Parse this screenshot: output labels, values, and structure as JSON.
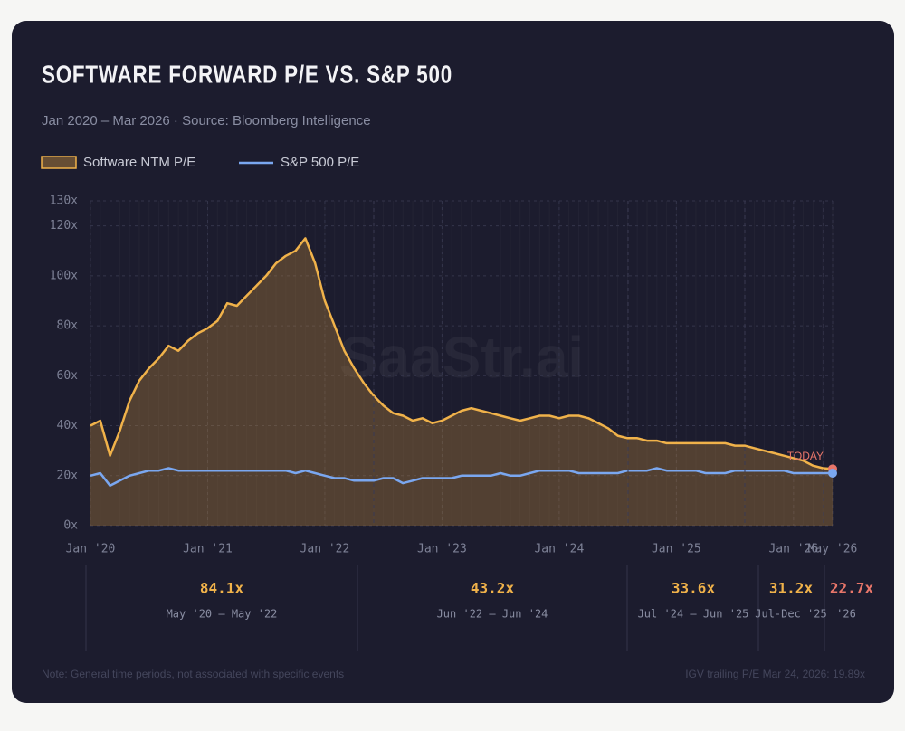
{
  "chart_data": {
    "type": "area-line",
    "title": "SOFTWARE FORWARD P/E VS. S&P 500",
    "subtitle": "Jan 2020 – Mar 2026  ·  Source: Bloomberg Intelligence",
    "watermark": "SaaStr.ai",
    "annotation": "TODAY",
    "x": [
      "2020-01",
      "2020-02",
      "2020-03",
      "2020-04",
      "2020-05",
      "2020-06",
      "2020-07",
      "2020-08",
      "2020-09",
      "2020-10",
      "2020-11",
      "2020-12",
      "2021-01",
      "2021-02",
      "2021-03",
      "2021-04",
      "2021-05",
      "2021-06",
      "2021-07",
      "2021-08",
      "2021-09",
      "2021-10",
      "2021-11",
      "2021-12",
      "2022-01",
      "2022-02",
      "2022-03",
      "2022-04",
      "2022-05",
      "2022-06",
      "2022-07",
      "2022-08",
      "2022-09",
      "2022-10",
      "2022-11",
      "2022-12",
      "2023-01",
      "2023-02",
      "2023-03",
      "2023-04",
      "2023-05",
      "2023-06",
      "2023-07",
      "2023-08",
      "2023-09",
      "2023-10",
      "2023-11",
      "2023-12",
      "2024-01",
      "2024-02",
      "2024-03",
      "2024-04",
      "2024-05",
      "2024-06",
      "2024-07",
      "2024-08",
      "2024-09",
      "2024-10",
      "2024-11",
      "2024-12",
      "2025-01",
      "2025-02",
      "2025-03",
      "2025-04",
      "2025-05",
      "2025-06",
      "2025-07",
      "2025-08",
      "2025-09",
      "2025-10",
      "2025-11",
      "2025-12",
      "2026-01",
      "2026-02",
      "2026-03",
      "2026-04",
      "2026-05"
    ],
    "series": [
      {
        "name": "Software NTM P/E",
        "color": "#f0b24a",
        "fill": "rgba(196,140,60,0.32)",
        "values": [
          40,
          42,
          28,
          38,
          50,
          58,
          63,
          67,
          72,
          70,
          74,
          77,
          79,
          82,
          89,
          88,
          92,
          96,
          100,
          105,
          108,
          110,
          115,
          105,
          90,
          80,
          70,
          63,
          57,
          52,
          48,
          45,
          44,
          42,
          43,
          41,
          42,
          44,
          46,
          47,
          46,
          45,
          44,
          43,
          42,
          43,
          44,
          44,
          43,
          44,
          44,
          43,
          41,
          39,
          36,
          35,
          35,
          34,
          34,
          33,
          33,
          33,
          33,
          33,
          33,
          33,
          32,
          32,
          31,
          30,
          29,
          28,
          27,
          26,
          24,
          23,
          22.7
        ]
      },
      {
        "name": "S&P 500 P/E",
        "color": "#7aa7f0",
        "values": [
          20,
          21,
          16,
          18,
          20,
          21,
          22,
          22,
          23,
          22,
          22,
          22,
          22,
          22,
          22,
          22,
          22,
          22,
          22,
          22,
          22,
          21,
          22,
          21,
          20,
          19,
          19,
          18,
          18,
          18,
          19,
          19,
          17,
          18,
          19,
          19,
          19,
          19,
          20,
          20,
          20,
          20,
          21,
          20,
          20,
          21,
          22,
          22,
          22,
          22,
          21,
          21,
          21,
          21,
          21,
          22,
          22,
          22,
          23,
          22,
          22,
          22,
          22,
          21,
          21,
          21,
          22,
          22,
          22,
          22,
          22,
          22,
          21,
          21,
          21,
          21,
          21
        ]
      }
    ],
    "xlim": [
      "2020-01",
      "2026-05"
    ],
    "xticks": [
      {
        "value": "2020-01",
        "label": "Jan '20"
      },
      {
        "value": "2021-01",
        "label": "Jan '21"
      },
      {
        "value": "2022-01",
        "label": "Jan '22"
      },
      {
        "value": "2023-01",
        "label": "Jan '23"
      },
      {
        "value": "2024-01",
        "label": "Jan '24"
      },
      {
        "value": "2025-01",
        "label": "Jan '25"
      },
      {
        "value": "2026-01",
        "label": "Jan '26"
      },
      {
        "value": "2026-05",
        "label": "May '26"
      }
    ],
    "ylim": [
      0,
      130
    ],
    "yticks": [
      {
        "value": 0,
        "label": "0x"
      },
      {
        "value": 20,
        "label": "20x"
      },
      {
        "value": 40,
        "label": "40x"
      },
      {
        "value": 60,
        "label": "60x"
      },
      {
        "value": 80,
        "label": "80x"
      },
      {
        "value": 100,
        "label": "100x"
      },
      {
        "value": 120,
        "label": "120x"
      },
      {
        "value": 130,
        "label": "130x"
      }
    ],
    "grid": true,
    "periods": [
      {
        "average": "84.1x",
        "range": "May '20 – May '22"
      },
      {
        "average": "43.2x",
        "range": "Jun '22 – Jun '24"
      },
      {
        "average": "33.6x",
        "range": "Jul '24 – Jun '25"
      },
      {
        "average": "31.2x",
        "range": "Jul-Dec '25"
      },
      {
        "average": "22.7x",
        "range": "'26"
      }
    ],
    "note": "Note: General time periods, not associated with specific events",
    "footnote": "IGV trailing P/E Mar 24, 2026: 19.89x"
  }
}
